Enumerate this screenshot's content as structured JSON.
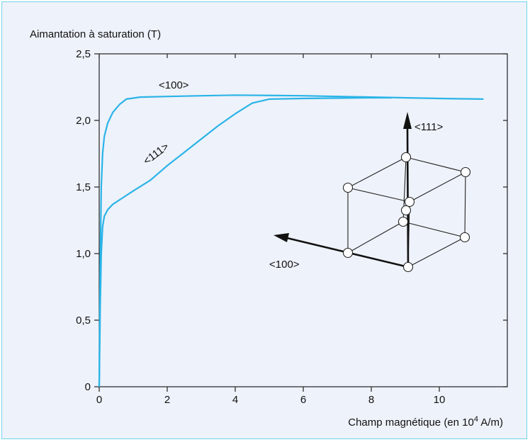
{
  "chart_data": {
    "type": "line",
    "title": "",
    "ylabel": "Aimantation à saturation (T)",
    "xlabel_main": "Champ magnétique (en 10",
    "xlabel_sup": "4",
    "xlabel_end": " A/m)",
    "xlim": [
      0,
      12
    ],
    "ylim": [
      0,
      2.5
    ],
    "x_ticks": [
      0,
      2,
      4,
      6,
      8,
      10
    ],
    "y_ticks": [
      "0",
      "0,5",
      "1,0",
      "1,5",
      "2,0",
      "2,5"
    ],
    "y_tick_values": [
      0,
      0.5,
      1.0,
      1.5,
      2.0,
      2.5
    ],
    "series": [
      {
        "name": "<100>",
        "color": "#2ab4e8",
        "x": [
          0,
          0.03,
          0.06,
          0.1,
          0.15,
          0.25,
          0.4,
          0.6,
          0.8,
          1.2,
          2.0,
          3.0,
          4.0,
          6.0,
          8.0,
          10.0,
          11.3
        ],
        "y": [
          0,
          0.9,
          1.5,
          1.75,
          1.88,
          1.98,
          2.06,
          2.12,
          2.16,
          2.175,
          2.18,
          2.185,
          2.19,
          2.185,
          2.175,
          2.165,
          2.16
        ]
      },
      {
        "name": "<111>",
        "color": "#2ab4e8",
        "x": [
          0,
          0.03,
          0.06,
          0.1,
          0.15,
          0.25,
          0.4,
          0.7,
          1.0,
          1.5,
          2.0,
          2.5,
          3.0,
          3.5,
          4.0,
          4.5,
          5.0,
          6.0,
          8.0,
          8.6
        ],
        "y": [
          0,
          0.6,
          1.0,
          1.2,
          1.28,
          1.33,
          1.37,
          1.42,
          1.47,
          1.55,
          1.66,
          1.76,
          1.86,
          1.96,
          2.05,
          2.13,
          2.16,
          2.165,
          2.17,
          2.17
        ]
      }
    ],
    "annotations": {
      "label_100_curve": "<100>",
      "label_111_curve": "<111>",
      "inset_axis_111": "<111>",
      "inset_axis_100": "<100>"
    }
  }
}
